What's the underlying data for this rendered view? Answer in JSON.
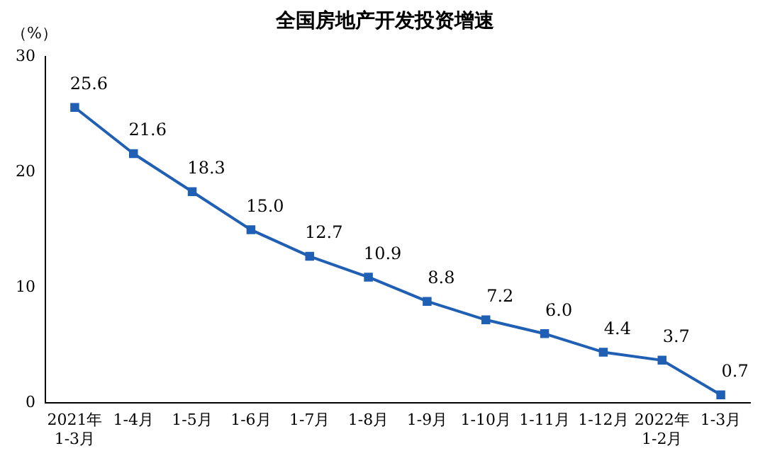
{
  "chart_data": {
    "type": "line",
    "title": "全国房地产开发投资增速",
    "ylabel": "（%）",
    "categories": [
      "2021年\n1-3月",
      "1-4月",
      "1-5月",
      "1-6月",
      "1-7月",
      "1-8月",
      "1-9月",
      "1-10月",
      "1-11月",
      "1-12月",
      "2022年\n1-2月",
      "1-3月"
    ],
    "series": [
      {
        "color": "#1f5fb4",
        "values": [
          25.6,
          21.6,
          18.3,
          15.0,
          12.7,
          10.9,
          8.8,
          7.2,
          6.0,
          4.4,
          3.7,
          0.7
        ],
        "value_labels": [
          "25.6",
          "21.6",
          "18.3",
          "15.0",
          "12.7",
          "10.9",
          "8.8",
          "7.2",
          "6.0",
          "4.4",
          "3.7",
          "0.7"
        ]
      }
    ],
    "ylim": [
      0,
      30
    ],
    "yticks": [
      0,
      10,
      20,
      30
    ],
    "grid": false,
    "legend": false,
    "marker": "square",
    "line_style": "solid"
  }
}
